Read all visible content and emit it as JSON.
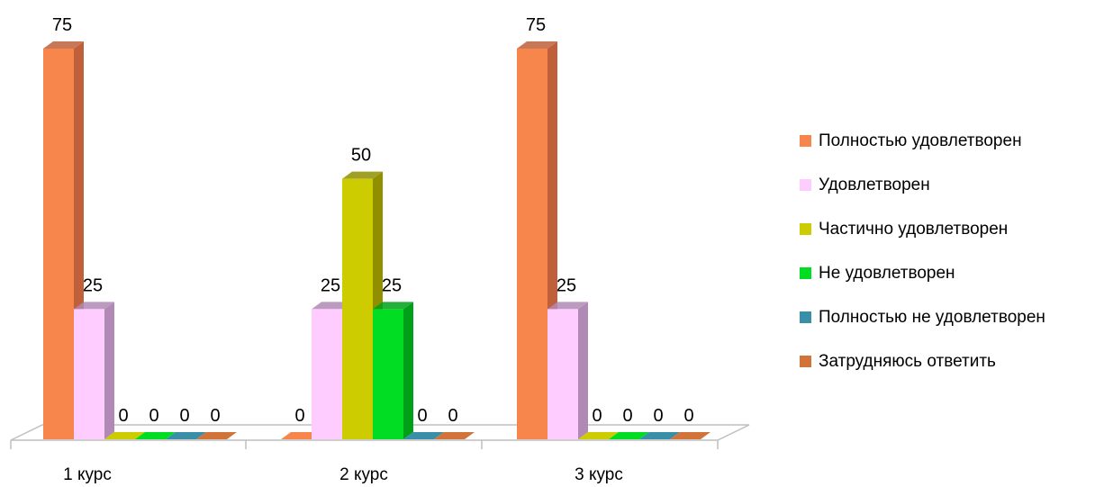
{
  "chart_data": {
    "type": "bar",
    "style": "3d-clustered-column",
    "categories": [
      "1 курс",
      "2 курс",
      "3 курс"
    ],
    "series": [
      {
        "name": "Полностью удовлетворен",
        "values": [
          75,
          0,
          75
        ],
        "color": "#F7864D",
        "shade": "#C0603A"
      },
      {
        "name": "Удовлетворен",
        "values": [
          25,
          25,
          25
        ],
        "color": "#FFCCFF",
        "shade": "#B08AB5"
      },
      {
        "name": "Частично удовлетворен",
        "values": [
          0,
          50,
          0
        ],
        "color": "#CCCC00",
        "shade": "#8F8F00"
      },
      {
        "name": "Не удовлетворен",
        "values": [
          0,
          25,
          0
        ],
        "color": "#00DD22",
        "shade": "#00A018"
      },
      {
        "name": "Полностью не удовлетворен",
        "values": [
          0,
          0,
          0
        ],
        "color": "#3A8FA8",
        "shade": "#2A6B80"
      },
      {
        "name": "Затрудняюсь ответить",
        "values": [
          0,
          0,
          0
        ],
        "color": "#D2733A",
        "shade": "#A5582A"
      }
    ],
    "ylim": [
      0,
      75
    ],
    "grid": false,
    "legend_position": "right",
    "data_labels": true
  }
}
